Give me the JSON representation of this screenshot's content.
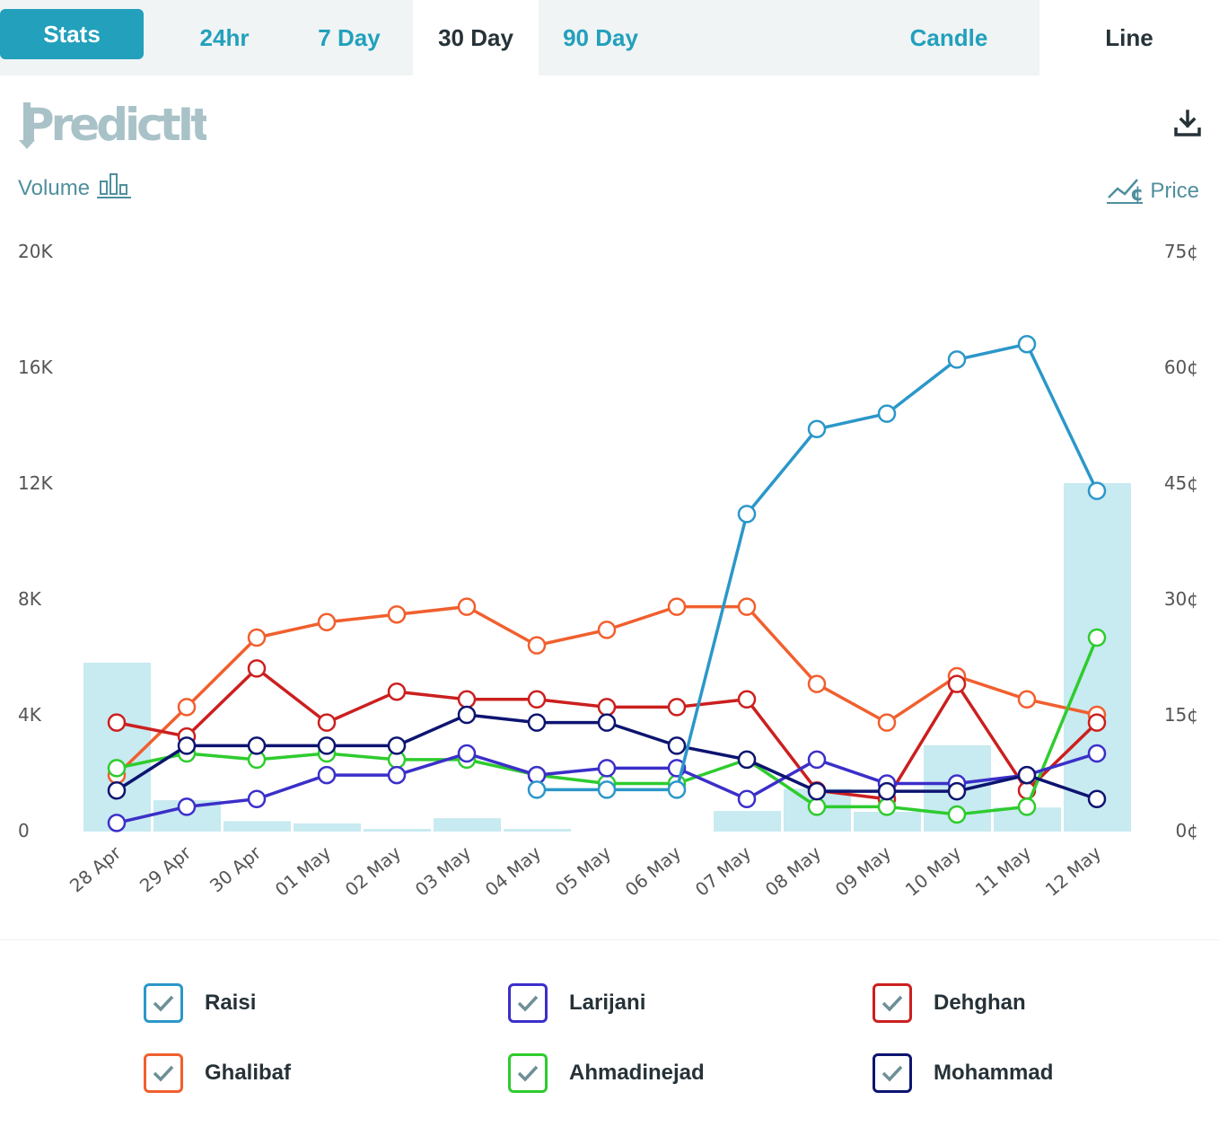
{
  "tabs": {
    "stats": "Stats",
    "ranges": [
      "24hr",
      "7 Day",
      "30 Day",
      "90 Day"
    ],
    "active_range": "30 Day",
    "views": [
      "Candle",
      "Line"
    ],
    "active_view": "Line"
  },
  "brand": {
    "logo_text": "PredictIt"
  },
  "labels": {
    "volume": "Volume",
    "price": "Price"
  },
  "icons": [
    "download-icon",
    "volume-bars-icon",
    "price-chart-icon",
    "checkmark-icon"
  ],
  "chart_data": {
    "type": "line",
    "categories": [
      "28 Apr",
      "29 Apr",
      "30 Apr",
      "01 May",
      "02 May",
      "03 May",
      "04 May",
      "05 May",
      "06 May",
      "07 May",
      "08 May",
      "09 May",
      "10 May",
      "11 May",
      "12 May"
    ],
    "volume_axis": {
      "ticks": [
        "0",
        "4K",
        "8K",
        "12K",
        "16K",
        "20K"
      ],
      "ylim": [
        0,
        20000
      ]
    },
    "price_axis": {
      "ticks": [
        "0¢",
        "15¢",
        "30¢",
        "45¢",
        "60¢",
        "75¢"
      ],
      "ylim": [
        0,
        75
      ]
    },
    "volume": [
      5800,
      1050,
      330,
      250,
      60,
      430,
      60,
      0,
      0,
      680,
      1450,
      650,
      2950,
      800,
      12000
    ],
    "series": [
      {
        "name": "Raisi",
        "color": "#2b97c9",
        "values": [
          null,
          null,
          null,
          null,
          null,
          null,
          5.3,
          5.3,
          5.3,
          41,
          52,
          54,
          61,
          63,
          44
        ]
      },
      {
        "name": "Larijani",
        "color": "#3b2fc9",
        "values": [
          1,
          3.1,
          4.1,
          7.2,
          7.2,
          10,
          7.2,
          8.1,
          8.1,
          4.1,
          9.2,
          6.1,
          6.1,
          7.2,
          10
        ]
      },
      {
        "name": "Dehghan",
        "color": "#cc1f1f",
        "values": [
          14,
          12.2,
          21,
          14,
          18,
          17,
          17,
          16,
          16,
          17,
          5.2,
          4.1,
          19,
          5.2,
          14
        ]
      },
      {
        "name": "Ghalibaf",
        "color": "#f15f2e",
        "values": [
          7.2,
          16,
          25,
          27,
          28,
          29,
          24,
          26,
          29,
          29,
          19,
          14,
          20,
          17,
          15
        ]
      },
      {
        "name": "Ahmadinejad",
        "color": "#2ecc2e",
        "values": [
          8.1,
          10,
          9.2,
          10,
          9.2,
          9.2,
          7.2,
          6.1,
          6.1,
          9.2,
          3.1,
          3.1,
          2.1,
          3.1,
          25
        ]
      },
      {
        "name": "Mohammad",
        "color": "#0d1470",
        "values": [
          5.2,
          11,
          11,
          11,
          11,
          15,
          14,
          14,
          11,
          9.2,
          5.1,
          5.1,
          5.1,
          7.2,
          4.1
        ]
      }
    ]
  }
}
